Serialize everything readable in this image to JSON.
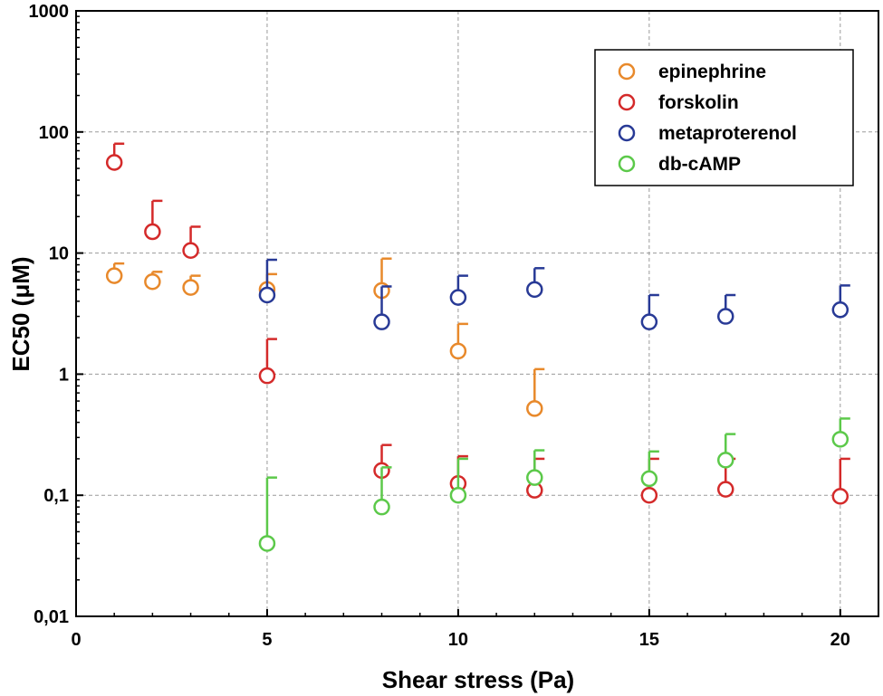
{
  "chart_data": {
    "type": "scatter",
    "title": "",
    "xlabel": "Shear stress (Pa)",
    "ylabel": "EC50 (μM)",
    "yscale": "log",
    "xlim": [
      0,
      21
    ],
    "ylim": [
      0.01,
      1000
    ],
    "xticks": [
      0,
      5,
      10,
      15,
      20
    ],
    "xtick_labels": [
      "0",
      "5",
      "10",
      "15",
      "20"
    ],
    "yticks": [
      0.01,
      0.1,
      1,
      10,
      100,
      1000
    ],
    "ytick_labels": [
      "0,01",
      "0,1",
      "1",
      "10",
      "100",
      "1000"
    ],
    "grid": true,
    "legend_position": "top-right",
    "series": [
      {
        "name": "epinephrine",
        "color": "#e8892b",
        "x": [
          1,
          2,
          3,
          5,
          8,
          10,
          12
        ],
        "y": [
          6.5,
          5.8,
          5.2,
          5.0,
          4.9,
          1.55,
          0.52
        ],
        "err_upper": [
          8.2,
          7.0,
          6.5,
          6.7,
          9.0,
          2.6,
          1.1
        ]
      },
      {
        "name": "forskolin",
        "color": "#d42a2a",
        "x": [
          1,
          2,
          3,
          5,
          8,
          10,
          12,
          15,
          17,
          20
        ],
        "y": [
          56,
          15,
          10.5,
          0.97,
          0.16,
          0.125,
          0.11,
          0.1,
          0.112,
          0.098
        ],
        "err_upper": [
          80,
          27,
          16.5,
          1.95,
          0.26,
          0.21,
          0.2,
          0.2,
          0.2,
          0.2
        ]
      },
      {
        "name": "metaproterenol",
        "color": "#283a96",
        "x": [
          5,
          8,
          10,
          12,
          15,
          17,
          20
        ],
        "y": [
          4.5,
          2.7,
          4.3,
          5.0,
          2.7,
          3.0,
          3.4
        ],
        "err_upper": [
          8.8,
          5.3,
          6.5,
          7.5,
          4.5,
          4.5,
          5.4
        ]
      },
      {
        "name": "db-cAMP",
        "color": "#5cc94a",
        "x": [
          5,
          8,
          10,
          12,
          15,
          17,
          20
        ],
        "y": [
          0.04,
          0.08,
          0.1,
          0.14,
          0.137,
          0.195,
          0.29
        ],
        "err_upper": [
          0.14,
          0.17,
          0.2,
          0.235,
          0.23,
          0.32,
          0.43
        ]
      }
    ]
  }
}
